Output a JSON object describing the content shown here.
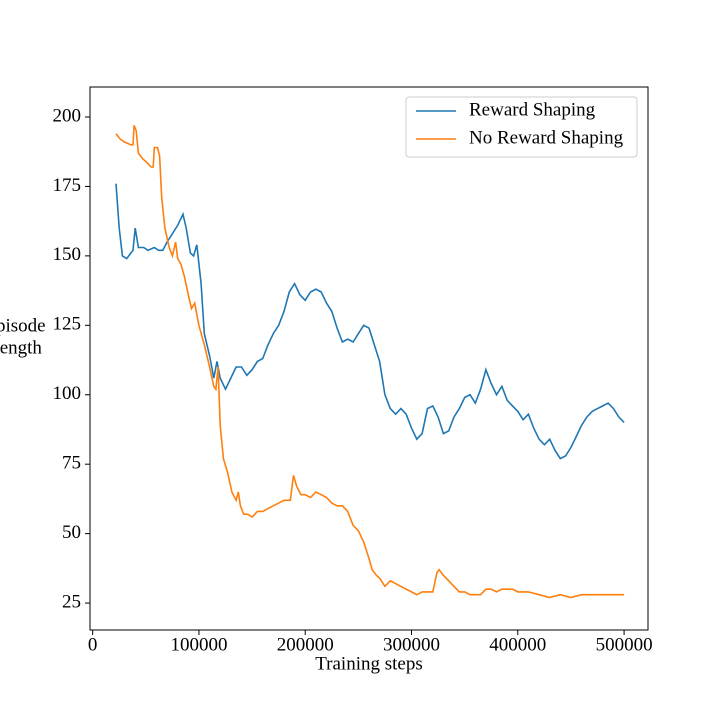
{
  "chart_data": {
    "type": "line",
    "xlabel": "Training steps",
    "ylabel": [
      "Episode",
      "Length"
    ],
    "xlim": [
      -2500,
      522500
    ],
    "ylim": [
      15.3,
      210.8
    ],
    "xticks": [
      0,
      100000,
      200000,
      300000,
      400000,
      500000
    ],
    "yticks": [
      25,
      50,
      75,
      100,
      125,
      150,
      175,
      200
    ],
    "legend": "upper right",
    "series": [
      {
        "name": "Reward Shaping",
        "color": "#1f77b4",
        "x": [
          22000,
          25000,
          28000,
          32000,
          38000,
          40000,
          43000,
          48000,
          52000,
          58000,
          62000,
          66000,
          70000,
          75000,
          80000,
          85000,
          88000,
          92000,
          95000,
          98000,
          102000,
          105000,
          110000,
          114000,
          117000,
          120000,
          125000,
          130000,
          135000,
          140000,
          145000,
          150000,
          155000,
          160000,
          165000,
          170000,
          175000,
          180000,
          185000,
          190000,
          195000,
          200000,
          205000,
          210000,
          215000,
          220000,
          225000,
          230000,
          235000,
          240000,
          245000,
          250000,
          255000,
          260000,
          265000,
          270000,
          275000,
          280000,
          285000,
          290000,
          295000,
          300000,
          305000,
          310000,
          315000,
          320000,
          325000,
          330000,
          335000,
          340000,
          345000,
          350000,
          355000,
          360000,
          365000,
          370000,
          375000,
          380000,
          385000,
          390000,
          395000,
          400000,
          405000,
          410000,
          415000,
          420000,
          425000,
          430000,
          435000,
          440000,
          445000,
          450000,
          455000,
          460000,
          465000,
          470000,
          475000,
          480000,
          485000,
          490000,
          495000,
          500000
        ],
        "values": [
          176,
          160,
          150,
          149,
          152,
          160,
          153,
          153,
          152,
          153,
          152,
          152,
          155,
          158,
          161,
          165,
          160,
          151,
          150,
          154,
          140,
          122,
          114,
          106,
          112,
          106,
          102,
          106,
          110,
          110,
          107,
          109,
          112,
          113,
          118,
          122,
          125,
          130,
          137,
          140,
          136,
          134,
          137,
          138,
          137,
          133,
          130,
          124,
          119,
          120,
          119,
          122,
          125,
          124,
          118,
          112,
          100,
          95,
          93,
          95,
          93,
          88,
          84,
          86,
          95,
          96,
          92,
          86,
          87,
          92,
          95,
          99,
          100,
          97,
          102,
          109,
          104,
          100,
          103,
          98,
          96,
          94,
          91,
          93,
          88,
          84,
          82,
          84,
          80,
          77,
          78,
          81,
          85,
          89,
          92,
          94,
          95,
          96,
          97,
          95,
          92,
          90
        ]
      },
      {
        "name": "No Reward Shaping",
        "color": "#ff7f0e",
        "x": [
          22000,
          26000,
          30000,
          36000,
          38000,
          39000,
          41000,
          43000,
          47000,
          50000,
          55000,
          57000,
          58000,
          61000,
          63000,
          65000,
          68000,
          72000,
          75000,
          78000,
          80000,
          83000,
          86000,
          90000,
          93000,
          96000,
          100000,
          105000,
          110000,
          114000,
          116000,
          118000,
          120000,
          123000,
          127000,
          131000,
          135000,
          137000,
          139000,
          142000,
          146000,
          150000,
          155000,
          160000,
          165000,
          170000,
          175000,
          180000,
          186000,
          189000,
          192000,
          196000,
          200000,
          205000,
          210000,
          215000,
          220000,
          225000,
          230000,
          235000,
          240000,
          245000,
          250000,
          255000,
          260000,
          263000,
          267000,
          270000,
          275000,
          280000,
          285000,
          290000,
          295000,
          300000,
          305000,
          310000,
          315000,
          320000,
          324000,
          326000,
          330000,
          335000,
          340000,
          345000,
          350000,
          355000,
          360000,
          365000,
          370000,
          375000,
          380000,
          385000,
          390000,
          395000,
          400000,
          410000,
          420000,
          430000,
          440000,
          450000,
          460000,
          470000,
          480000,
          490000,
          500000
        ],
        "values": [
          194,
          192,
          191,
          190,
          190,
          197,
          195,
          187,
          185,
          184,
          182,
          182,
          189,
          189,
          186,
          171,
          160,
          153,
          150,
          155,
          149,
          147,
          143,
          136,
          131,
          133,
          125,
          118,
          110,
          103,
          102,
          110,
          89,
          77,
          72,
          65,
          62,
          65,
          60,
          57,
          57,
          56,
          58,
          58,
          59,
          60,
          61,
          62,
          62,
          71,
          67,
          64,
          64,
          63,
          65,
          64,
          63,
          61,
          60,
          60,
          58,
          53,
          51,
          47,
          41,
          37,
          35,
          34,
          31,
          33,
          32,
          31,
          30,
          29,
          28,
          29,
          29,
          29,
          36,
          37,
          35,
          33,
          31,
          29,
          29,
          28,
          28,
          28,
          30,
          30,
          29,
          30,
          30,
          30,
          29,
          29,
          28,
          27,
          28,
          27,
          28,
          28,
          28,
          28,
          28
        ]
      }
    ]
  }
}
